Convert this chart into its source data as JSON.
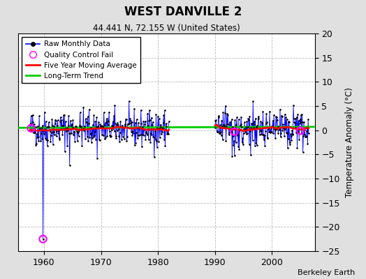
{
  "title": "WEST DANVILLE 2",
  "subtitle": "44.441 N, 72.155 W (United States)",
  "ylabel": "Temperature Anomaly (°C)",
  "attribution": "Berkeley Earth",
  "xlim": [
    1955.5,
    2007.5
  ],
  "ylim": [
    -25,
    20
  ],
  "yticks": [
    -25,
    -20,
    -15,
    -10,
    -5,
    0,
    5,
    10,
    15,
    20
  ],
  "xticks": [
    1960,
    1970,
    1980,
    1990,
    2000
  ],
  "plot_bg_color": "#ffffff",
  "fig_bg_color": "#e0e0e0",
  "seed": 42
}
